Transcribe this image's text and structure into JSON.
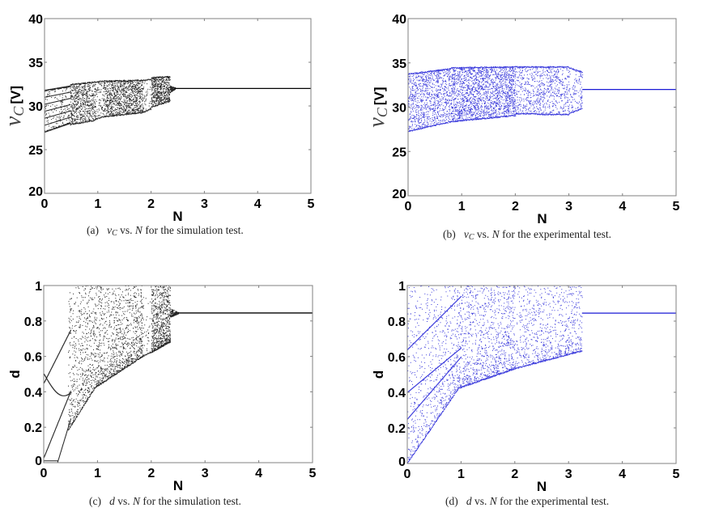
{
  "colors": {
    "simulation": "#000000",
    "experimental": "#1a1ad6",
    "axis": "#808080"
  },
  "chart_data": [
    {
      "id": "a",
      "type": "scatter",
      "title": "",
      "caption": {
        "label": "(a)",
        "symbol": "v",
        "subscript": "C",
        "text": "vs.",
        "var": "N",
        "rest": "for the simulation test."
      },
      "xlabel": "N",
      "ylabel_symbol": "v",
      "ylabel_sub": "C",
      "ylabel_unit": "[V]",
      "xlim": [
        0,
        5
      ],
      "ylim": [
        20,
        40
      ],
      "xticks": [
        "0",
        "1",
        "2",
        "3",
        "4",
        "5"
      ],
      "yticks": [
        "20",
        "25",
        "30",
        "35",
        "40"
      ],
      "color_key": "simulation",
      "description": "Bifurcation diagram: period-doubling branches from N=0, chaotic band 0.5-2.35, converges to fixed point 32 V for N>2.4",
      "regions": [
        {
          "n": [
            0.0,
            0.48
          ],
          "lo": [
            27.0,
            28.0
          ],
          "hi": [
            31.8,
            32.3
          ],
          "density": 0.25,
          "branches": 7
        },
        {
          "n": [
            0.48,
            0.95
          ],
          "lo": [
            27.8,
            28.3
          ],
          "hi": [
            32.5,
            32.8
          ],
          "density": 1.0
        },
        {
          "n": [
            0.95,
            1.1
          ],
          "lo": [
            28.4,
            28.7
          ],
          "hi": [
            32.8,
            32.9
          ],
          "density": 0.35
        },
        {
          "n": [
            1.1,
            1.85
          ],
          "lo": [
            28.7,
            29.2
          ],
          "hi": [
            32.9,
            33.0
          ],
          "density": 1.0
        },
        {
          "n": [
            1.85,
            2.0
          ],
          "lo": [
            29.2,
            29.6
          ],
          "hi": [
            33.0,
            33.1
          ],
          "density": 0.2
        },
        {
          "n": [
            2.0,
            2.35
          ],
          "lo": [
            29.8,
            30.5
          ],
          "hi": [
            33.3,
            33.4
          ],
          "density": 1.2
        },
        {
          "n": [
            2.35,
            2.45
          ],
          "lo": [
            31.5,
            31.9
          ],
          "hi": [
            32.3,
            32.1
          ],
          "density": 0.8
        }
      ],
      "fixed_point": {
        "n": [
          2.45,
          5.0
        ],
        "value": 32.0
      }
    },
    {
      "id": "b",
      "type": "scatter",
      "title": "",
      "caption": {
        "label": "(b)",
        "symbol": "v",
        "subscript": "C",
        "text": "vs.",
        "var": "N",
        "rest": "for the experimental test."
      },
      "xlabel": "N",
      "ylabel_symbol": "v",
      "ylabel_sub": "C",
      "ylabel_unit": "[V]",
      "xlim": [
        0,
        5
      ],
      "ylim": [
        20,
        40
      ],
      "xticks": [
        "0",
        "1",
        "2",
        "3",
        "4",
        "5"
      ],
      "yticks": [
        "20",
        "25",
        "30",
        "35",
        "40"
      ],
      "color_key": "experimental",
      "description": "Experimental bifurcation diagram: chaotic band 0-3.25 between ~27.5 and ~34.6 V, converges to fixed point 32 V for N>3.3",
      "regions": [
        {
          "n": [
            0.0,
            0.8
          ],
          "lo": [
            27.2,
            28.3
          ],
          "hi": [
            33.8,
            34.4
          ],
          "density": 0.9
        },
        {
          "n": [
            0.8,
            2.0
          ],
          "lo": [
            28.3,
            29.0
          ],
          "hi": [
            34.5,
            34.6
          ],
          "density": 1.2
        },
        {
          "n": [
            2.0,
            2.4
          ],
          "lo": [
            29.2,
            29.2
          ],
          "hi": [
            34.6,
            34.6
          ],
          "density": 0.5
        },
        {
          "n": [
            2.4,
            3.0
          ],
          "lo": [
            29.1,
            29.1
          ],
          "hi": [
            34.6,
            34.6
          ],
          "density": 0.55
        },
        {
          "n": [
            3.0,
            3.25
          ],
          "lo": [
            29.2,
            29.8
          ],
          "hi": [
            34.5,
            34.0
          ],
          "density": 0.35
        }
      ],
      "fixed_point": {
        "n": [
          3.25,
          5.0
        ],
        "value": 32.0
      }
    },
    {
      "id": "c",
      "type": "scatter",
      "title": "",
      "caption": {
        "label": "(c)",
        "symbol": "d",
        "subscript": "",
        "text": "vs.",
        "var": "N",
        "rest": "for the simulation test."
      },
      "xlabel": "N",
      "ylabel_symbol": "d",
      "ylabel_sub": "",
      "ylabel_unit": "",
      "xlim": [
        0,
        5
      ],
      "ylim": [
        0,
        1
      ],
      "xticks": [
        "0",
        "1",
        "2",
        "3",
        "4",
        "5"
      ],
      "yticks": [
        "0",
        "0.2",
        "0.4",
        "0.6",
        "0.8",
        "1"
      ],
      "color_key": "simulation",
      "description": "Duty ratio bifurcation diagram: chaotic band 0.45-2.35 bounded below by rising curve, converges to 0.845 for N>2.4",
      "regions": [
        {
          "n": [
            0.45,
            0.95
          ],
          "lo": [
            0.18,
            0.42
          ],
          "hi": [
            1.0,
            1.0
          ],
          "density": 0.9
        },
        {
          "n": [
            0.95,
            1.85
          ],
          "lo": [
            0.42,
            0.6
          ],
          "hi": [
            1.0,
            1.0
          ],
          "density": 0.9
        },
        {
          "n": [
            1.85,
            2.0
          ],
          "lo": [
            0.6,
            0.62
          ],
          "hi": [
            0.95,
            0.95
          ],
          "density": 0.15
        },
        {
          "n": [
            2.0,
            2.35
          ],
          "lo": [
            0.62,
            0.68
          ],
          "hi": [
            1.0,
            1.0
          ],
          "density": 1.6
        },
        {
          "n": [
            2.35,
            2.5
          ],
          "lo": [
            0.82,
            0.84
          ],
          "hi": [
            0.87,
            0.85
          ],
          "density": 0.8
        }
      ],
      "fixed_point": {
        "n": [
          2.5,
          5.0
        ],
        "value": 0.845
      }
    },
    {
      "id": "d",
      "type": "scatter",
      "title": "",
      "caption": {
        "label": "(d)",
        "symbol": "d",
        "subscript": "",
        "text": "vs.",
        "var": "N",
        "rest": "for the experimental test."
      },
      "xlabel": "N",
      "ylabel_symbol": "d",
      "ylabel_sub": "",
      "ylabel_unit": "",
      "xlim": [
        0,
        5
      ],
      "ylim": [
        0,
        1
      ],
      "xticks": [
        "0",
        "1",
        "2",
        "3",
        "4",
        "5"
      ],
      "yticks": [
        "0",
        "0.2",
        "0.4",
        "0.6",
        "0.8",
        "1"
      ],
      "color_key": "experimental",
      "description": "Experimental duty ratio bifurcation diagram: chaotic band 0-3.25 bounded below by rising curve, converges to 0.845 for N>3.3",
      "regions": [
        {
          "n": [
            0.0,
            0.95
          ],
          "lo": [
            0.0,
            0.42
          ],
          "hi": [
            1.0,
            1.0
          ],
          "density": 0.6
        },
        {
          "n": [
            0.95,
            2.0
          ],
          "lo": [
            0.42,
            0.53
          ],
          "hi": [
            1.0,
            1.0
          ],
          "density": 0.75
        },
        {
          "n": [
            2.0,
            3.25
          ],
          "lo": [
            0.53,
            0.63
          ],
          "hi": [
            1.0,
            1.0
          ],
          "density": 0.45
        }
      ],
      "fixed_point": {
        "n": [
          3.25,
          5.0
        ],
        "value": 0.845
      }
    }
  ]
}
